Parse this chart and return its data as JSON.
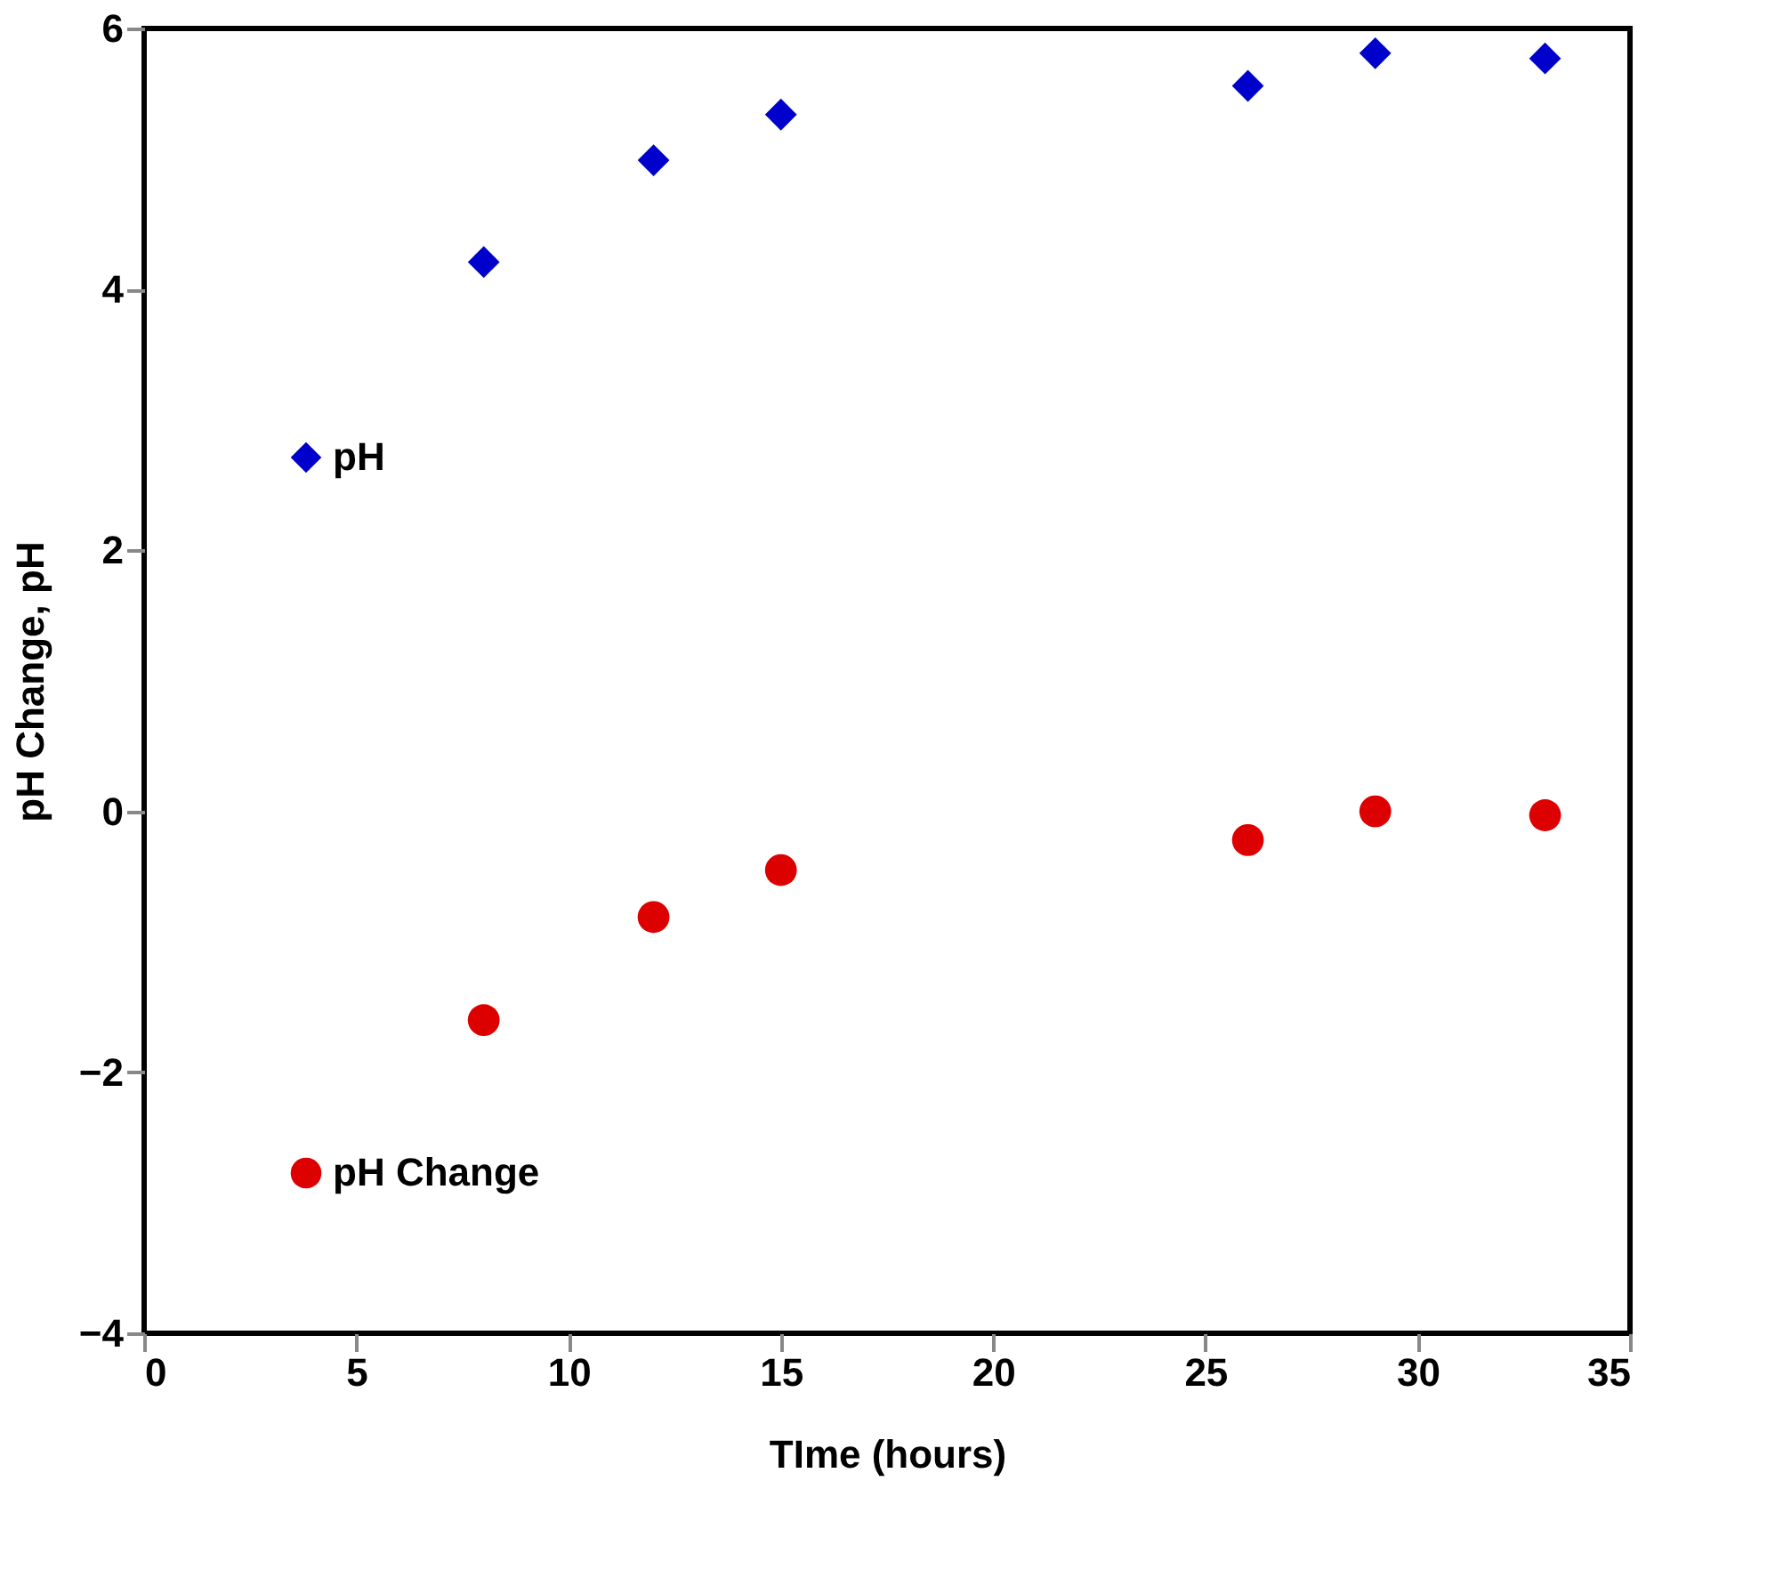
{
  "chart_data": {
    "type": "scatter",
    "xlabel": "TIme (hours)",
    "ylabel": "pH Change, pH",
    "x": [
      8,
      12,
      15,
      26,
      29,
      33
    ],
    "series": [
      {
        "name": "pH",
        "color": "#0000cc",
        "marker": "diamond",
        "values": [
          4.21,
          4.99,
          5.34,
          5.56,
          5.81,
          5.77
        ]
      },
      {
        "name": "pH Change",
        "color": "#dd0000",
        "marker": "circle",
        "values": [
          -1.6,
          -0.81,
          -0.45,
          -0.22,
          0.0,
          -0.03
        ]
      }
    ],
    "xlim": [
      0,
      35
    ],
    "ylim": [
      -4,
      6
    ],
    "xticks": [
      0,
      5,
      10,
      15,
      20,
      25,
      30,
      35
    ],
    "yticks": [
      -4,
      -2,
      0,
      2,
      4,
      6
    ],
    "grid": false,
    "legend": "left"
  }
}
